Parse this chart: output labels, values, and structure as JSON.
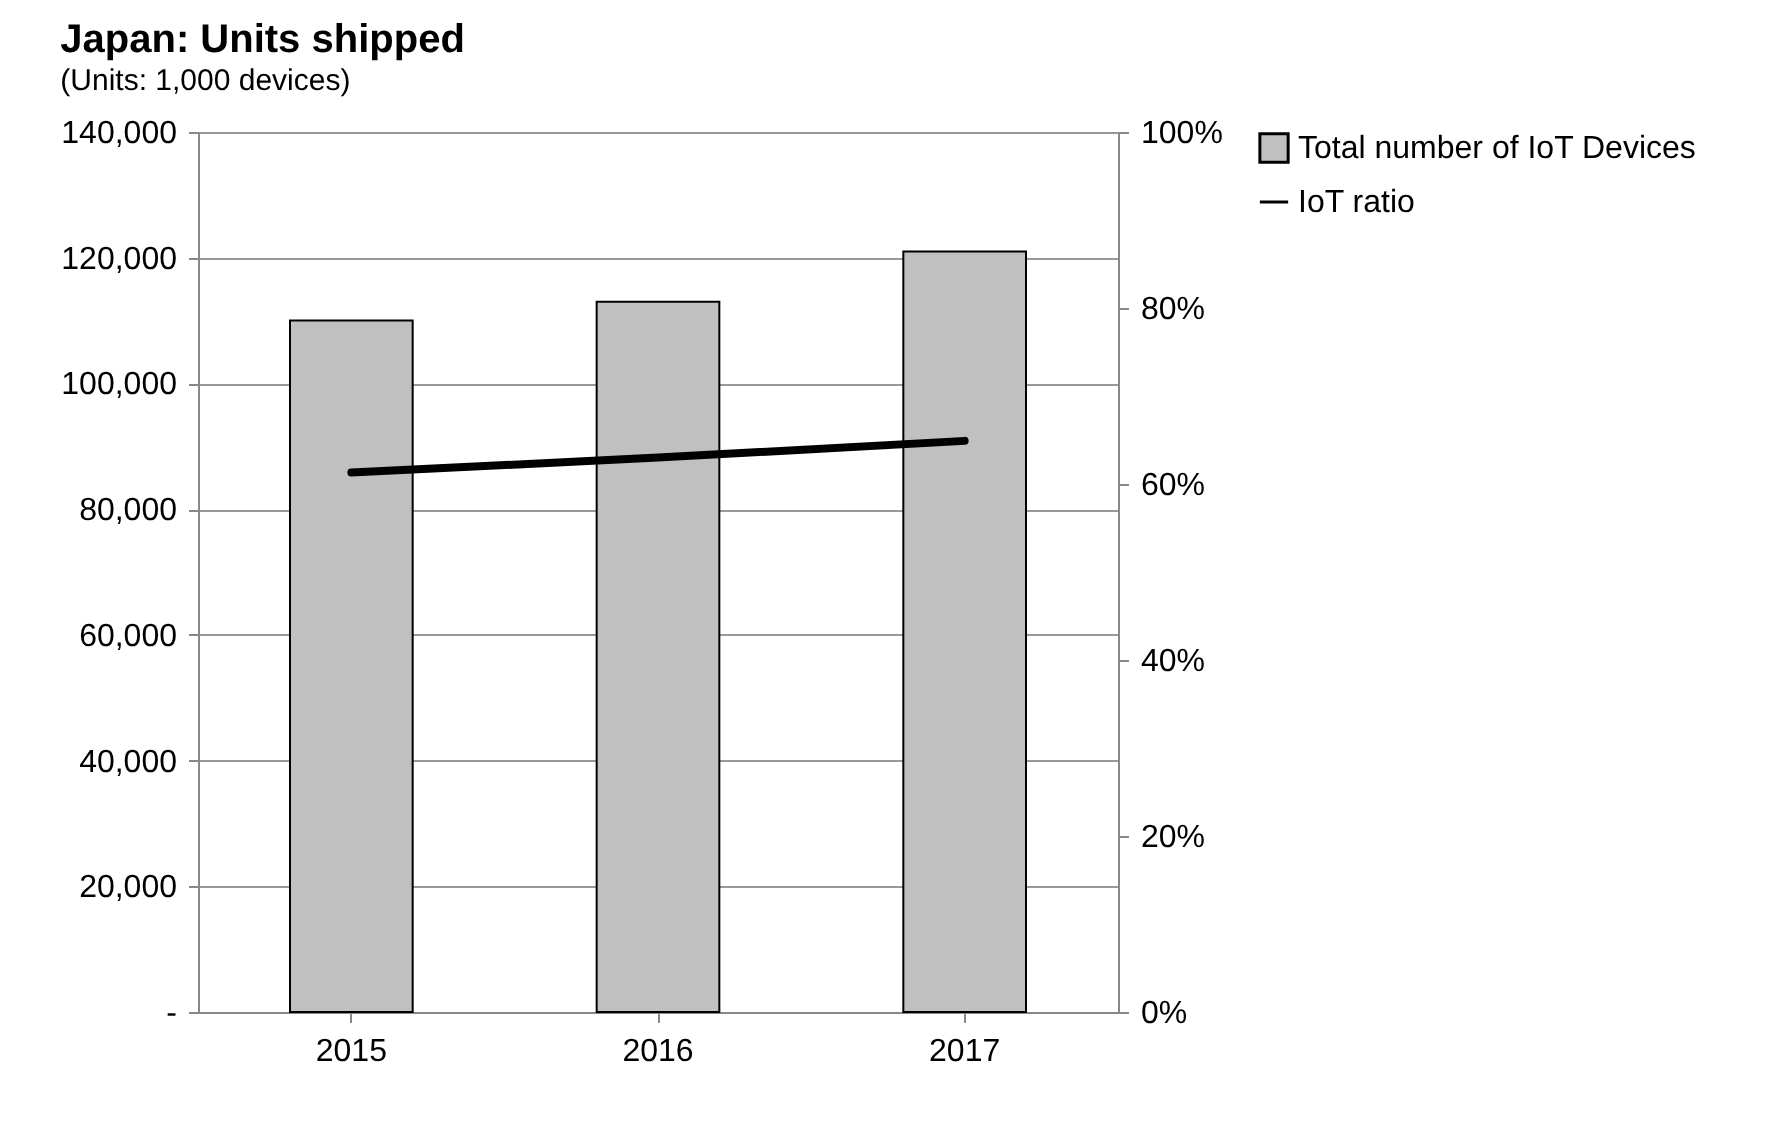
{
  "chart_data": {
    "type": "bar",
    "title": "Japan: Units shipped",
    "annotations": [
      "(Units: 1,000 devices)"
    ],
    "categories": [
      "2015",
      "2016",
      "2017"
    ],
    "series": [
      {
        "name": "Total number of IoT Devices",
        "color": "#c0c0c0",
        "values": [
          110000,
          113000,
          121000
        ]
      },
      {
        "name": "IoT ratio",
        "type": "line",
        "axis": "y2",
        "color": "#000000",
        "values": [
          61.3,
          63.0,
          64.9
        ]
      }
    ],
    "ylim": [
      0,
      140000
    ],
    "yticks": [
      {
        "value": 0,
        "label": "-"
      },
      {
        "value": 20000,
        "label": "20,000"
      },
      {
        "value": 40000,
        "label": "40,000"
      },
      {
        "value": 60000,
        "label": "60,000"
      },
      {
        "value": 80000,
        "label": "80,000"
      },
      {
        "value": 100000,
        "label": "100,000"
      },
      {
        "value": 120000,
        "label": "120,000"
      },
      {
        "value": 140000,
        "label": "140,000"
      }
    ],
    "y2lim": [
      0,
      100
    ],
    "y2ticks": [
      {
        "value": 0,
        "label": "0%"
      },
      {
        "value": 20,
        "label": "20%"
      },
      {
        "value": 40,
        "label": "40%"
      },
      {
        "value": 60,
        "label": "60%"
      },
      {
        "value": 80,
        "label": "80%"
      },
      {
        "value": 100,
        "label": "100%"
      }
    ],
    "grid": "y",
    "legend": "right",
    "marker": "none",
    "line_style": "solid"
  }
}
